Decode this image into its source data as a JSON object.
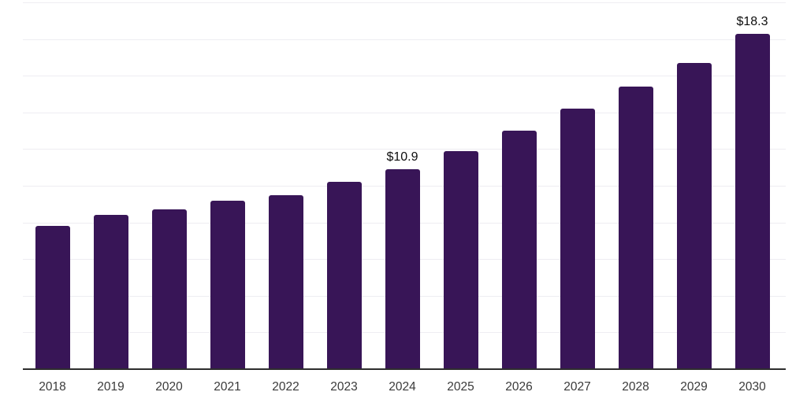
{
  "chart_data": {
    "type": "bar",
    "title": "",
    "categories": [
      "2018",
      "2019",
      "2020",
      "2021",
      "2022",
      "2023",
      "2024",
      "2025",
      "2026",
      "2027",
      "2028",
      "2029",
      "2030"
    ],
    "values": [
      7.8,
      8.4,
      8.7,
      9.2,
      9.5,
      10.2,
      10.9,
      11.9,
      13.0,
      14.2,
      15.4,
      16.7,
      18.3
    ],
    "point_labels": [
      "",
      "",
      "",
      "",
      "",
      "",
      "$10.9",
      "",
      "",
      "",
      "",
      "",
      "$18.3"
    ],
    "xlabel": "",
    "ylabel": "",
    "ylim": [
      0,
      20
    ],
    "grid_step": 2,
    "grid": "horizontal",
    "legend": "none",
    "colors": {
      "bar": "#381557",
      "grid": "#eeedf2",
      "axis": "#2e2e2e",
      "value_label": "#0d0d0d",
      "tick_label": "#3a3a3a",
      "background": "#ffffff"
    }
  }
}
